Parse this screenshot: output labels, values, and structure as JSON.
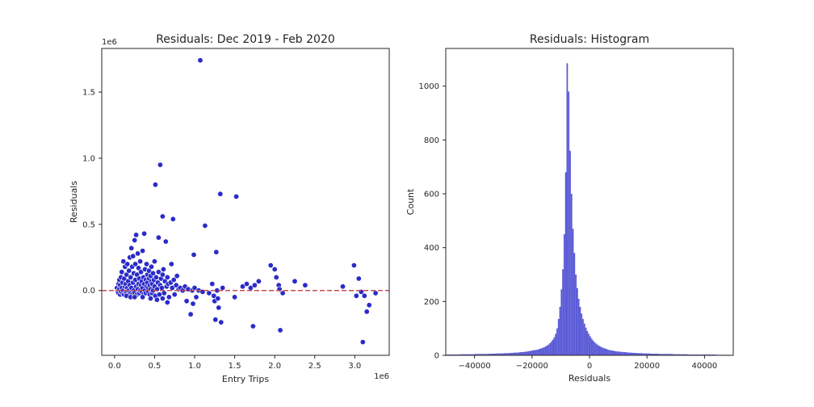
{
  "chart_data": [
    {
      "type": "scatter",
      "title": "Residuals: Dec 2019 - Feb 2020",
      "xlabel": "Entry Trips",
      "ylabel": "Residuals",
      "x_offset_label": "1e6",
      "y_offset_label": "1e6",
      "xlim": [
        -0.16,
        3.43
      ],
      "ylim": [
        -0.49,
        1.83
      ],
      "x_ticks": [
        0.0,
        0.5,
        1.0,
        1.5,
        2.0,
        2.5,
        3.0
      ],
      "x_tick_labels": [
        "0.0",
        "0.5",
        "1.0",
        "1.5",
        "2.0",
        "2.5",
        "3.0"
      ],
      "y_ticks": [
        0.0,
        0.5,
        1.0,
        1.5
      ],
      "y_tick_labels": [
        "0.0",
        "0.5",
        "1.0",
        "1.5"
      ],
      "reference_line": {
        "y": 0.0,
        "style": "dashed",
        "color": "#c44e52"
      },
      "marker_color": "#2b2bc8",
      "grid": false,
      "points": [
        [
          0.03,
          0.02
        ],
        [
          0.04,
          -0.01
        ],
        [
          0.05,
          0.05
        ],
        [
          0.05,
          -0.02
        ],
        [
          0.06,
          0.08
        ],
        [
          0.06,
          0.01
        ],
        [
          0.07,
          -0.03
        ],
        [
          0.07,
          0.04
        ],
        [
          0.08,
          0.1
        ],
        [
          0.08,
          -0.01
        ],
        [
          0.09,
          0.02
        ],
        [
          0.09,
          0.14
        ],
        [
          0.1,
          -0.02
        ],
        [
          0.1,
          0.06
        ],
        [
          0.11,
          0.22
        ],
        [
          0.11,
          0.0
        ],
        [
          0.12,
          -0.03
        ],
        [
          0.12,
          0.09
        ],
        [
          0.13,
          0.03
        ],
        [
          0.13,
          0.18
        ],
        [
          0.14,
          -0.01
        ],
        [
          0.14,
          0.05
        ],
        [
          0.15,
          0.12
        ],
        [
          0.15,
          -0.02
        ],
        [
          0.16,
          0.2
        ],
        [
          0.16,
          0.02
        ],
        [
          0.17,
          0.07
        ],
        [
          0.17,
          -0.03
        ],
        [
          0.18,
          0.15
        ],
        [
          0.18,
          0.0
        ],
        [
          0.19,
          0.25
        ],
        [
          0.19,
          0.04
        ],
        [
          0.2,
          -0.02
        ],
        [
          0.2,
          0.1
        ],
        [
          0.21,
          0.32
        ],
        [
          0.21,
          0.02
        ],
        [
          0.22,
          0.18
        ],
        [
          0.22,
          -0.03
        ],
        [
          0.23,
          0.06
        ],
        [
          0.23,
          0.26
        ],
        [
          0.24,
          0.0
        ],
        [
          0.24,
          0.13
        ],
        [
          0.25,
          0.38
        ],
        [
          0.25,
          -0.02
        ],
        [
          0.26,
          0.08
        ],
        [
          0.26,
          0.2
        ],
        [
          0.27,
          0.42
        ],
        [
          0.27,
          0.03
        ],
        [
          0.28,
          -0.03
        ],
        [
          0.28,
          0.12
        ],
        [
          0.29,
          0.28
        ],
        [
          0.29,
          0.01
        ],
        [
          0.3,
          0.05
        ],
        [
          0.3,
          0.17
        ],
        [
          0.31,
          -0.02
        ],
        [
          0.31,
          0.09
        ],
        [
          0.32,
          0.22
        ],
        [
          0.32,
          0.0
        ],
        [
          0.33,
          0.04
        ],
        [
          0.33,
          0.14
        ],
        [
          0.34,
          -0.01
        ],
        [
          0.34,
          0.07
        ],
        [
          0.35,
          0.3
        ],
        [
          0.35,
          0.02
        ],
        [
          0.36,
          0.1
        ],
        [
          0.36,
          -0.03
        ],
        [
          0.37,
          0.43
        ],
        [
          0.37,
          0.05
        ],
        [
          0.38,
          0.16
        ],
        [
          0.38,
          0.0
        ],
        [
          0.39,
          0.08
        ],
        [
          0.39,
          -0.02
        ],
        [
          0.4,
          0.2
        ],
        [
          0.4,
          0.03
        ],
        [
          0.41,
          0.06
        ],
        [
          0.41,
          0.12
        ],
        [
          0.42,
          -0.01
        ],
        [
          0.42,
          0.02
        ],
        [
          0.43,
          0.09
        ],
        [
          0.43,
          0.15
        ],
        [
          0.44,
          0.04
        ],
        [
          0.44,
          -0.03
        ],
        [
          0.45,
          0.11
        ],
        [
          0.45,
          0.01
        ],
        [
          0.46,
          0.07
        ],
        [
          0.46,
          0.18
        ],
        [
          0.47,
          -0.02
        ],
        [
          0.47,
          0.05
        ],
        [
          0.48,
          0.13
        ],
        [
          0.48,
          0.0
        ],
        [
          0.49,
          0.08
        ],
        [
          0.5,
          0.03
        ],
        [
          0.5,
          0.22
        ],
        [
          0.51,
          -0.04
        ],
        [
          0.51,
          0.8
        ],
        [
          0.52,
          0.1
        ],
        [
          0.53,
          0.01
        ],
        [
          0.54,
          0.06
        ],
        [
          0.55,
          0.4
        ],
        [
          0.55,
          0.14
        ],
        [
          0.56,
          -0.03
        ],
        [
          0.57,
          0.95
        ],
        [
          0.57,
          0.04
        ],
        [
          0.58,
          0.09
        ],
        [
          0.59,
          0.02
        ],
        [
          0.6,
          0.56
        ],
        [
          0.6,
          0.12
        ],
        [
          0.61,
          0.16
        ],
        [
          0.62,
          -0.02
        ],
        [
          0.63,
          0.07
        ],
        [
          0.64,
          0.37
        ],
        [
          0.65,
          0.03
        ],
        [
          0.66,
          0.1
        ],
        [
          0.67,
          0.05
        ],
        [
          0.68,
          -0.05
        ],
        [
          0.7,
          0.06
        ],
        [
          0.71,
          0.2
        ],
        [
          0.72,
          0.02
        ],
        [
          0.73,
          0.54
        ],
        [
          0.74,
          0.08
        ],
        [
          0.75,
          -0.03
        ],
        [
          0.77,
          0.04
        ],
        [
          0.78,
          0.11
        ],
        [
          0.8,
          0.01
        ],
        [
          0.82,
          0.02
        ],
        [
          0.85,
          0.0
        ],
        [
          0.88,
          0.03
        ],
        [
          0.9,
          -0.08
        ],
        [
          0.92,
          0.01
        ],
        [
          0.95,
          -0.18
        ],
        [
          0.97,
          0.0
        ],
        [
          0.98,
          -0.1
        ],
        [
          0.99,
          0.27
        ],
        [
          1.0,
          0.02
        ],
        [
          1.02,
          -0.05
        ],
        [
          1.05,
          0.0
        ],
        [
          1.07,
          1.74
        ],
        [
          1.1,
          -0.01
        ],
        [
          1.13,
          0.49
        ],
        [
          1.18,
          -0.02
        ],
        [
          1.22,
          0.05
        ],
        [
          1.24,
          -0.04
        ],
        [
          1.25,
          -0.08
        ],
        [
          1.26,
          -0.22
        ],
        [
          1.27,
          0.29
        ],
        [
          1.28,
          0.0
        ],
        [
          1.29,
          -0.06
        ],
        [
          1.3,
          -0.13
        ],
        [
          1.32,
          0.73
        ],
        [
          1.33,
          -0.24
        ],
        [
          1.35,
          0.02
        ],
        [
          1.5,
          -0.05
        ],
        [
          1.52,
          0.71
        ],
        [
          1.6,
          0.03
        ],
        [
          1.65,
          0.05
        ],
        [
          1.7,
          0.02
        ],
        [
          1.73,
          -0.27
        ],
        [
          1.75,
          0.04
        ],
        [
          1.8,
          0.07
        ],
        [
          1.95,
          0.19
        ],
        [
          2.0,
          0.16
        ],
        [
          2.02,
          0.1
        ],
        [
          2.05,
          0.04
        ],
        [
          2.06,
          0.01
        ],
        [
          2.07,
          -0.3
        ],
        [
          2.1,
          -0.02
        ],
        [
          2.25,
          0.07
        ],
        [
          2.38,
          0.04
        ],
        [
          2.85,
          0.03
        ],
        [
          2.99,
          0.19
        ],
        [
          3.02,
          -0.04
        ],
        [
          3.05,
          0.09
        ],
        [
          3.08,
          -0.01
        ],
        [
          3.1,
          -0.39
        ],
        [
          3.12,
          -0.04
        ],
        [
          3.15,
          -0.16
        ],
        [
          3.18,
          -0.11
        ],
        [
          3.26,
          -0.02
        ],
        [
          0.15,
          -0.04
        ],
        [
          0.2,
          -0.05
        ],
        [
          0.25,
          -0.05
        ],
        [
          0.35,
          -0.05
        ],
        [
          0.45,
          -0.06
        ],
        [
          0.53,
          -0.07
        ],
        [
          0.6,
          -0.06
        ],
        [
          0.66,
          -0.09
        ]
      ]
    },
    {
      "type": "bar",
      "subtype": "histogram",
      "title": "Residuals: Histogram",
      "xlabel": "Residuals",
      "ylabel": "Count",
      "xlim": [
        -50000,
        50000
      ],
      "ylim": [
        0,
        1140
      ],
      "x_ticks": [
        -40000,
        -20000,
        0,
        20000,
        40000
      ],
      "x_tick_labels": [
        "−40000",
        "−20000",
        "0",
        "20000",
        "40000"
      ],
      "y_ticks": [
        0,
        200,
        400,
        600,
        800,
        1000
      ],
      "y_tick_labels": [
        "0",
        "200",
        "400",
        "600",
        "800",
        "1000"
      ],
      "bar_color": "#5a5ad6",
      "grid": false,
      "bin_width": 500,
      "bin_start": -50000,
      "counts": [
        3,
        3,
        3,
        3,
        3,
        3,
        3,
        3,
        3,
        3,
        4,
        4,
        4,
        4,
        4,
        4,
        4,
        4,
        4,
        4,
        5,
        5,
        5,
        5,
        5,
        5,
        5,
        5,
        5,
        5,
        6,
        6,
        6,
        6,
        6,
        7,
        7,
        7,
        7,
        7,
        8,
        8,
        8,
        8,
        9,
        9,
        9,
        10,
        10,
        10,
        11,
        11,
        12,
        12,
        13,
        13,
        14,
        15,
        16,
        17,
        18,
        19,
        20,
        21,
        22,
        24,
        26,
        28,
        30,
        33,
        36,
        40,
        45,
        51,
        58,
        67,
        80,
        100,
        135,
        180,
        245,
        320,
        450,
        680,
        1085,
        980,
        760,
        600,
        470,
        380,
        300,
        250,
        210,
        180,
        155,
        135,
        118,
        103,
        90,
        80,
        70,
        62,
        55,
        49,
        44,
        40,
        36,
        33,
        30,
        28,
        26,
        24,
        22,
        20,
        19,
        18,
        17,
        16,
        15,
        14,
        14,
        13,
        13,
        12,
        12,
        11,
        11,
        10,
        10,
        10,
        9,
        9,
        9,
        8,
        8,
        8,
        8,
        7,
        7,
        7,
        7,
        7,
        6,
        6,
        6,
        6,
        6,
        6,
        5,
        5,
        5,
        5,
        5,
        5,
        5,
        5,
        5,
        5,
        4,
        4,
        4,
        4,
        4,
        4,
        4,
        4,
        4,
        4,
        3,
        3,
        3,
        3,
        3,
        3,
        3,
        3,
        3,
        3,
        3,
        3,
        3,
        3,
        3,
        3,
        3,
        3,
        3,
        3,
        2,
        2,
        2,
        2,
        2,
        2,
        2,
        2,
        2,
        2
      ]
    }
  ]
}
